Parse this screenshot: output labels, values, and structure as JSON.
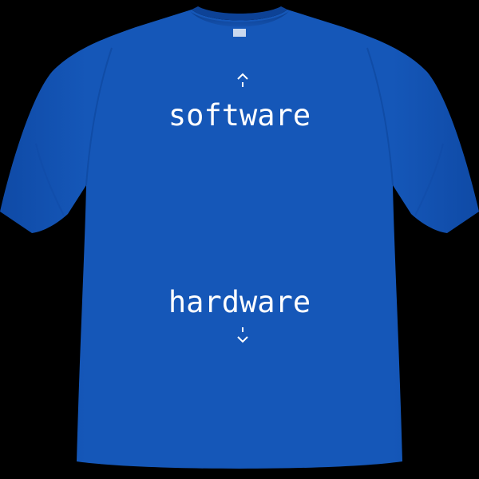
{
  "colors": {
    "background": "#000000",
    "shirt": "#1557b8",
    "shirt_shadow": "#0f479a",
    "print": "#ffffff"
  },
  "print": {
    "top_word": "software",
    "bottom_word": "hardware",
    "top_icon": "up-arrow-icon",
    "bottom_icon": "down-arrow-icon"
  }
}
